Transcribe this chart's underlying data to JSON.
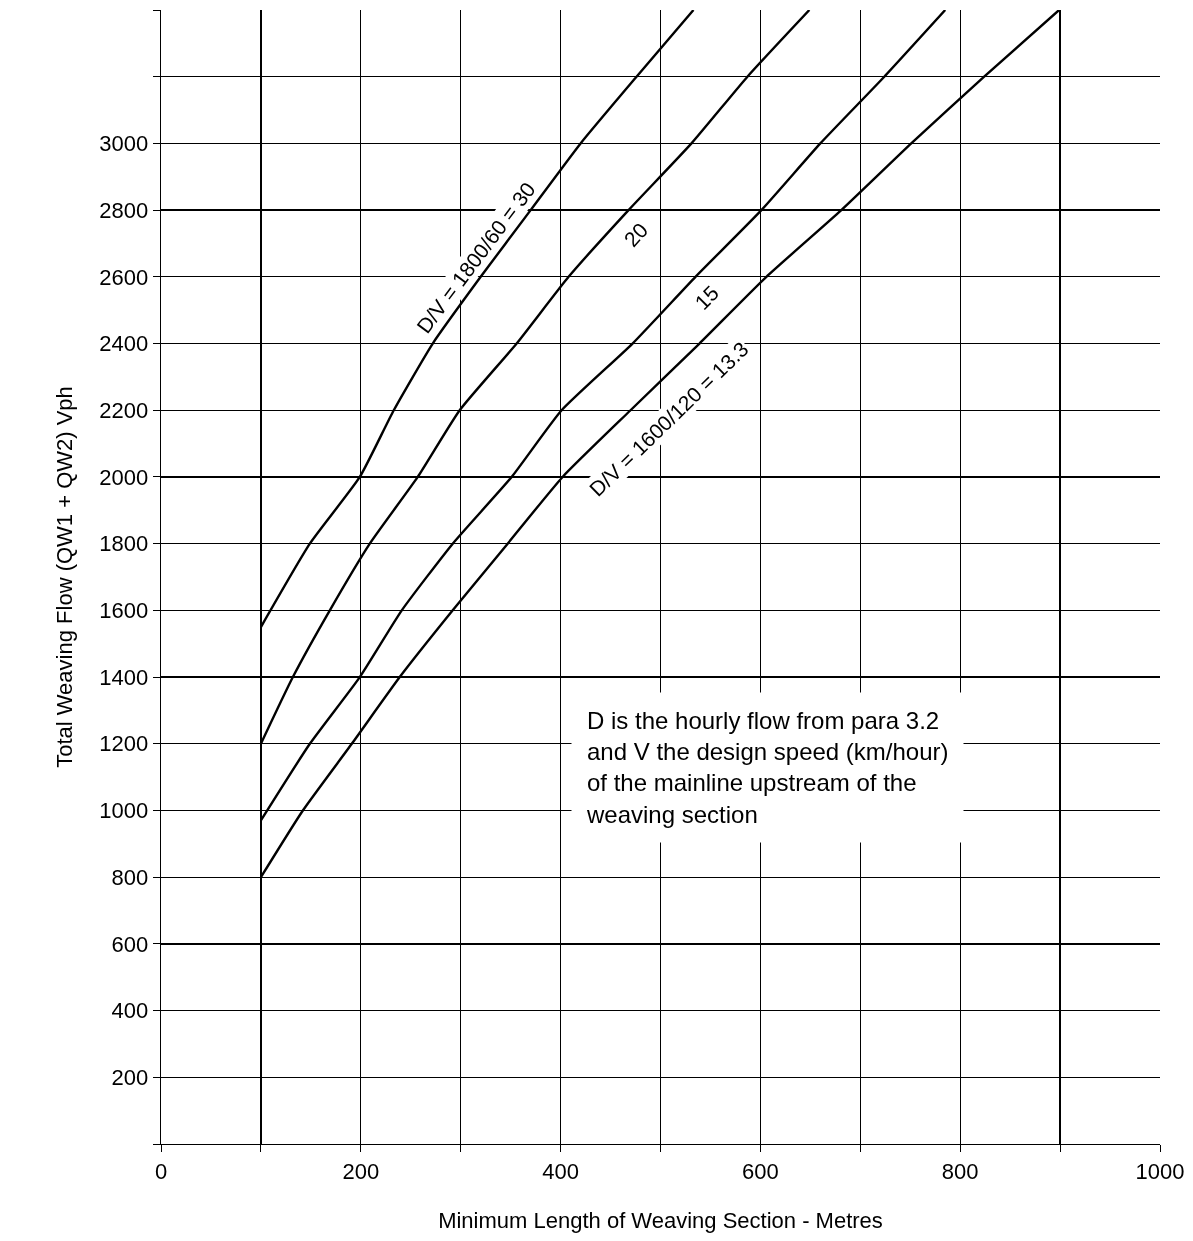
{
  "chart_data": {
    "type": "line",
    "xlabel": "Minimum Length of Weaving Section - Metres",
    "ylabel": "Total Weaving Flow (QW1 + QW2) Vph",
    "xlim": [
      0,
      1000
    ],
    "ylim": [
      0,
      3400
    ],
    "xticks": [
      0,
      {
        "value": 100,
        "label": null
      },
      200,
      {
        "value": 300,
        "label": null
      },
      400,
      {
        "value": 500,
        "label": null
      },
      600,
      {
        "value": 700,
        "label": null
      },
      800,
      {
        "value": 900,
        "label": null
      },
      1000
    ],
    "yticks": [
      {
        "value": 0,
        "label": null
      },
      200,
      400,
      600,
      800,
      1000,
      1200,
      1400,
      1600,
      1800,
      2000,
      2200,
      2400,
      2600,
      2800,
      3000,
      {
        "value": 3200,
        "label": null
      },
      {
        "value": 3400,
        "label": null
      }
    ],
    "grid": true,
    "legend": false,
    "marker": "none",
    "line_style": "solid",
    "series": [
      {
        "name": "D/V = 1800/60 = 30",
        "color": "#000000",
        "x": [
          100,
          149,
          199,
          233,
          272,
          320,
          370,
          420,
          476,
          533
        ],
        "values": [
          1550,
          1800,
          2000,
          2200,
          2400,
          2600,
          2800,
          3000,
          3200,
          3400
        ]
      },
      {
        "name": "20",
        "color": "#000000",
        "x": [
          100,
          132,
          169,
          209,
          257,
          299,
          356,
          408,
          468,
          531,
          587,
          649
        ],
        "values": [
          1200,
          1400,
          1600,
          1800,
          2000,
          2200,
          2400,
          2600,
          2800,
          3000,
          3200,
          3400
        ]
      },
      {
        "name": "15",
        "color": "#000000",
        "x": [
          100,
          149,
          199,
          241,
          292,
          351,
          401,
          472,
          535,
          601,
          660,
          724,
          785
        ],
        "values": [
          970,
          1200,
          1400,
          1600,
          1800,
          2000,
          2200,
          2400,
          2600,
          2800,
          3000,
          3200,
          3400
        ]
      },
      {
        "name": "D/V = 1600/120 = 13.3",
        "color": "#000000",
        "x": [
          100,
          142,
          191,
          239,
          292,
          347,
          402,
          470,
          539,
          606,
          681,
          751,
          824,
          899
        ],
        "values": [
          800,
          1000,
          1200,
          1400,
          1600,
          1800,
          2000,
          2200,
          2400,
          2600,
          2800,
          3000,
          3200,
          3400
        ]
      }
    ],
    "annotations": [
      "D is the hourly flow from para 3.2\nand V the design speed (km/hour)\nof the mainline upstream of the\nweaving section"
    ]
  }
}
